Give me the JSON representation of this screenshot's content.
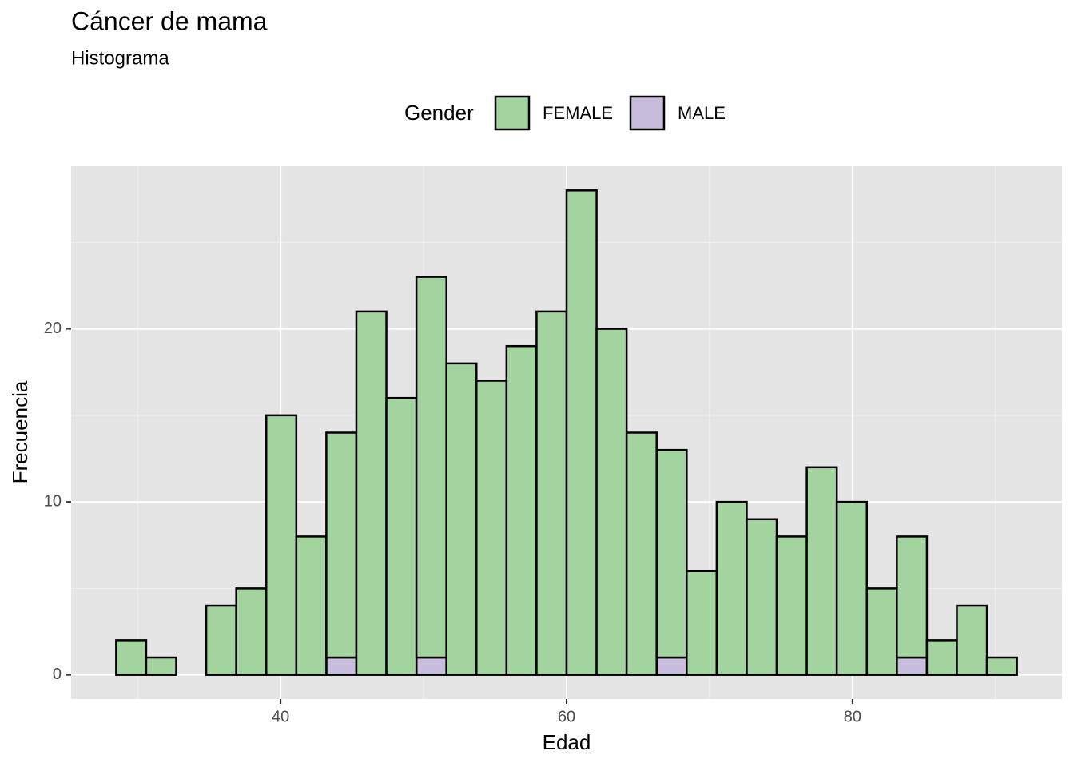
{
  "chart_data": {
    "type": "histogram",
    "title": "Cáncer de mama",
    "subtitle": "Histograma",
    "x_label": "Edad",
    "y_label": "Frecuencia",
    "legend_title": "Gender",
    "legend_position": "top",
    "bins": [
      28.5,
      30.6,
      32.7,
      34.8,
      36.9,
      39.0,
      41.1,
      43.2,
      45.3,
      47.4,
      49.5,
      51.6,
      53.7,
      55.8,
      57.9,
      60.0,
      62.1,
      64.2,
      66.3,
      68.4,
      70.5,
      72.6,
      74.7,
      76.8,
      78.9,
      81.0,
      83.1,
      85.2,
      87.3,
      89.4,
      91.5
    ],
    "series": [
      {
        "name": "FEMALE",
        "color": "#a3d49f",
        "values": [
          2,
          1,
          0,
          4,
          5,
          15,
          8,
          13,
          21,
          16,
          22,
          18,
          17,
          19,
          21,
          28,
          20,
          14,
          12,
          6,
          10,
          9,
          8,
          12,
          10,
          5,
          7,
          2,
          4,
          1
        ]
      },
      {
        "name": "MALE",
        "color": "#c8bddc",
        "values": [
          0,
          0,
          0,
          0,
          0,
          0,
          0,
          1,
          0,
          0,
          1,
          0,
          0,
          0,
          0,
          0,
          0,
          0,
          1,
          0,
          0,
          0,
          0,
          0,
          0,
          0,
          1,
          0,
          0,
          0
        ]
      }
    ],
    "stacked": true,
    "xlim": [
      25.35,
      94.65
    ],
    "ylim": [
      -1.4,
      29.4
    ],
    "xticks": [
      40,
      60,
      80
    ],
    "yticks": [
      0,
      10,
      20
    ],
    "x_minor_grid": [
      30,
      50,
      70,
      90
    ],
    "y_minor_grid": [
      5,
      15,
      25
    ],
    "grid": true
  }
}
